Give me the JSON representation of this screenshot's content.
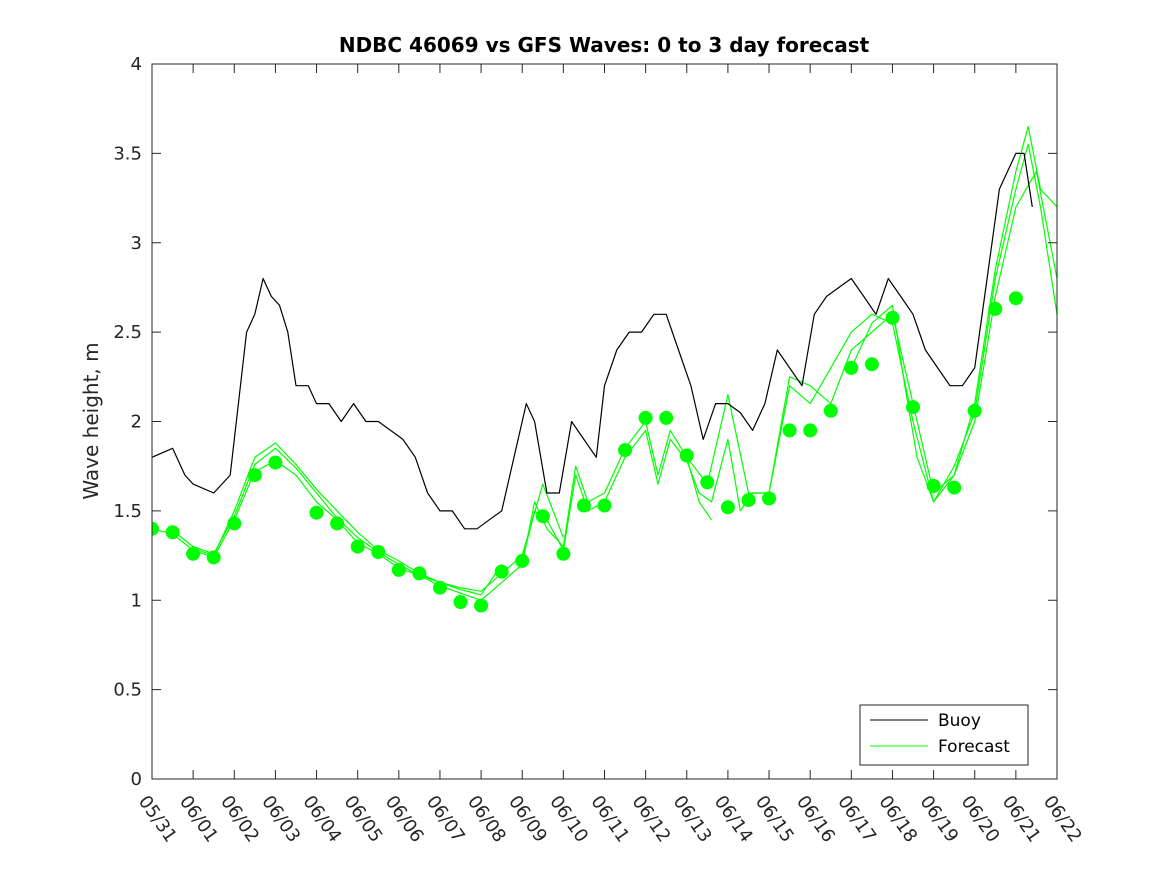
{
  "chart_data": {
    "type": "line",
    "title": "NDBC 46069 vs GFS Waves: 0 to 3 day forecast",
    "xlabel": "",
    "ylabel": "Wave height, m",
    "xlim": [
      0,
      22
    ],
    "ylim": [
      0,
      4
    ],
    "yticks": [
      0,
      0.5,
      1,
      1.5,
      2,
      2.5,
      3,
      3.5,
      4
    ],
    "yticklabels": [
      "0",
      "0.5",
      "1",
      "1.5",
      "2",
      "2.5",
      "3",
      "3.5",
      "4"
    ],
    "xticklabels": [
      "05/31",
      "06/01",
      "06/02",
      "06/03",
      "06/04",
      "06/05",
      "06/06",
      "06/07",
      "06/08",
      "06/09",
      "06/10",
      "06/11",
      "06/12",
      "06/13",
      "06/14",
      "06/15",
      "06/16",
      "06/17",
      "06/18",
      "06/19",
      "06/20",
      "06/21",
      "06/22"
    ],
    "grid": false,
    "legend": {
      "position": "bottom-right",
      "entries": [
        "Buoy",
        "Forecast"
      ]
    },
    "colors": {
      "buoy": "#000000",
      "forecast": "#00ff00",
      "axis": "#262626"
    },
    "buoy": {
      "name": "Buoy",
      "x": [
        0,
        0.5,
        0.8,
        1.0,
        1.5,
        1.9,
        2.1,
        2.3,
        2.5,
        2.7,
        2.9,
        3.1,
        3.3,
        3.5,
        3.8,
        4.0,
        4.3,
        4.6,
        4.9,
        5.2,
        5.5,
        5.8,
        6.1,
        6.4,
        6.7,
        7.0,
        7.3,
        7.6,
        7.9,
        8.2,
        8.5,
        8.8,
        9.1,
        9.3,
        9.6,
        9.9,
        10.2,
        10.5,
        10.8,
        11.0,
        11.3,
        11.6,
        11.9,
        12.2,
        12.5,
        12.8,
        13.1,
        13.4,
        13.7,
        14.0,
        14.3,
        14.6,
        14.9,
        15.2,
        15.5,
        15.8,
        16.1,
        16.4,
        16.7,
        17.0,
        17.3,
        17.6,
        17.9,
        18.2,
        18.5,
        18.8,
        19.1,
        19.4,
        19.7,
        20.0,
        20.3,
        20.6,
        20.8,
        21.0,
        21.2,
        21.4
      ],
      "values": [
        1.8,
        1.85,
        1.7,
        1.65,
        1.6,
        1.7,
        2.1,
        2.5,
        2.6,
        2.8,
        2.7,
        2.65,
        2.5,
        2.2,
        2.2,
        2.1,
        2.1,
        2.0,
        2.1,
        2.0,
        2.0,
        1.95,
        1.9,
        1.8,
        1.6,
        1.5,
        1.5,
        1.4,
        1.4,
        1.45,
        1.5,
        1.8,
        2.1,
        2.0,
        1.6,
        1.6,
        2.0,
        1.9,
        1.8,
        2.2,
        2.4,
        2.5,
        2.5,
        2.6,
        2.6,
        2.4,
        2.2,
        1.9,
        2.1,
        2.1,
        2.05,
        1.95,
        2.1,
        2.4,
        2.3,
        2.2,
        2.6,
        2.7,
        2.75,
        2.8,
        2.7,
        2.6,
        2.8,
        2.7,
        2.6,
        2.4,
        2.3,
        2.2,
        2.2,
        2.3,
        2.8,
        3.3,
        3.4,
        3.5,
        3.5,
        3.2
      ]
    },
    "forecast": {
      "name": "Forecast",
      "runs": [
        {
          "x": [
            0,
            0.5,
            1.0,
            1.5,
            2.0,
            2.5,
            3.0,
            3.5,
            4.0,
            4.5,
            5.0,
            5.5,
            6.0,
            6.5,
            7.0,
            7.5,
            8.0
          ],
          "values": [
            1.4,
            1.37,
            1.28,
            1.24,
            1.45,
            1.72,
            1.78,
            1.7,
            1.55,
            1.45,
            1.32,
            1.26,
            1.18,
            1.14,
            1.08,
            1.04,
            1.0
          ]
        },
        {
          "x": [
            0.5,
            1.0,
            1.5,
            2.0,
            2.5,
            3.0,
            3.5,
            4.0,
            4.5,
            5.0,
            5.5,
            6.0,
            6.5,
            7.0,
            7.5,
            8.0,
            8.5
          ],
          "values": [
            1.39,
            1.3,
            1.26,
            1.47,
            1.76,
            1.85,
            1.74,
            1.6,
            1.46,
            1.35,
            1.27,
            1.2,
            1.14,
            1.1,
            1.06,
            1.03,
            1.2
          ]
        },
        {
          "x": [
            1.0,
            1.5,
            2.0,
            2.5,
            3.0,
            3.5,
            4.0,
            4.5,
            5.0,
            5.5,
            6.0,
            6.5,
            7.0,
            7.5,
            8.0,
            8.5,
            9.0,
            9.5,
            10.0
          ],
          "values": [
            1.29,
            1.25,
            1.5,
            1.8,
            1.88,
            1.76,
            1.62,
            1.5,
            1.38,
            1.28,
            1.22,
            1.15,
            1.1,
            1.07,
            1.05,
            1.15,
            1.25,
            1.65,
            1.35
          ]
        },
        {
          "x": [
            8.0,
            8.5,
            9.0,
            9.3,
            9.6,
            10.0,
            10.3,
            10.6,
            11.0,
            11.5,
            12.0,
            12.3,
            12.6,
            13.0,
            13.3,
            13.6
          ],
          "values": [
            1.0,
            1.1,
            1.2,
            1.55,
            1.4,
            1.3,
            1.75,
            1.55,
            1.6,
            1.85,
            2.0,
            1.7,
            1.95,
            1.8,
            1.55,
            1.45
          ]
        },
        {
          "x": [
            9.0,
            9.3,
            9.6,
            10.0,
            10.3,
            10.6,
            11.0,
            11.5,
            12.0,
            12.3,
            12.6,
            13.0,
            13.3,
            13.6,
            14.0,
            14.3,
            14.6,
            15.0
          ],
          "values": [
            1.22,
            1.5,
            1.45,
            1.28,
            1.7,
            1.5,
            1.55,
            1.8,
            1.95,
            1.65,
            1.9,
            1.78,
            1.6,
            1.55,
            1.9,
            1.5,
            1.6,
            1.6
          ]
        },
        {
          "x": [
            13.0,
            13.5,
            14.0,
            14.5,
            15.0,
            15.5,
            16.0,
            16.5,
            17.0,
            17.5,
            18.0,
            18.5,
            19.0,
            19.5,
            20.0,
            20.5,
            21.0,
            21.5,
            22.0
          ],
          "values": [
            1.8,
            1.65,
            2.15,
            1.6,
            1.6,
            2.25,
            2.2,
            2.1,
            2.4,
            2.5,
            2.6,
            2.1,
            1.6,
            1.7,
            2.0,
            2.7,
            3.2,
            3.4,
            2.8
          ]
        },
        {
          "x": [
            15.0,
            15.5,
            16.0,
            16.5,
            17.0,
            17.5,
            18.0,
            18.5,
            19.0,
            19.5,
            20.0,
            20.5,
            21.0,
            21.3,
            21.6,
            22.0
          ],
          "values": [
            1.6,
            2.2,
            2.1,
            2.3,
            2.5,
            2.6,
            2.55,
            2.0,
            1.55,
            1.75,
            2.05,
            2.8,
            3.3,
            3.55,
            3.2,
            2.6
          ]
        },
        {
          "x": [
            17.0,
            17.5,
            18.0,
            18.3,
            18.6,
            19.0,
            19.5,
            20.0,
            20.5,
            21.0,
            21.3,
            21.6,
            22.0
          ],
          "values": [
            2.3,
            2.55,
            2.65,
            2.2,
            1.8,
            1.55,
            1.7,
            2.1,
            2.85,
            3.4,
            3.65,
            3.3,
            3.2
          ]
        }
      ],
      "markers": {
        "x": [
          0,
          0.5,
          1.0,
          1.5,
          2.0,
          2.5,
          3.0,
          4.0,
          4.5,
          5.0,
          5.5,
          6.0,
          6.5,
          7.0,
          7.5,
          8.0,
          8.5,
          9.0,
          9.5,
          10.0,
          10.5,
          11.0,
          11.5,
          12.0,
          12.5,
          13.0,
          13.5,
          14.0,
          14.5,
          15.0,
          15.5,
          16.0,
          16.5,
          17.0,
          17.5,
          18.0,
          18.5,
          19.0,
          19.5,
          20.0,
          20.5,
          21.0
        ],
        "values": [
          1.4,
          1.38,
          1.26,
          1.24,
          1.43,
          1.7,
          1.77,
          1.49,
          1.43,
          1.3,
          1.27,
          1.17,
          1.15,
          1.07,
          0.99,
          0.97,
          1.16,
          1.22,
          1.47,
          1.26,
          1.53,
          1.53,
          1.84,
          2.02,
          2.02,
          1.81,
          1.66,
          1.52,
          1.56,
          1.57,
          1.95,
          1.95,
          2.06,
          2.3,
          2.32,
          2.58,
          2.08,
          1.64,
          1.63,
          2.06,
          2.63,
          2.69
        ]
      }
    }
  }
}
